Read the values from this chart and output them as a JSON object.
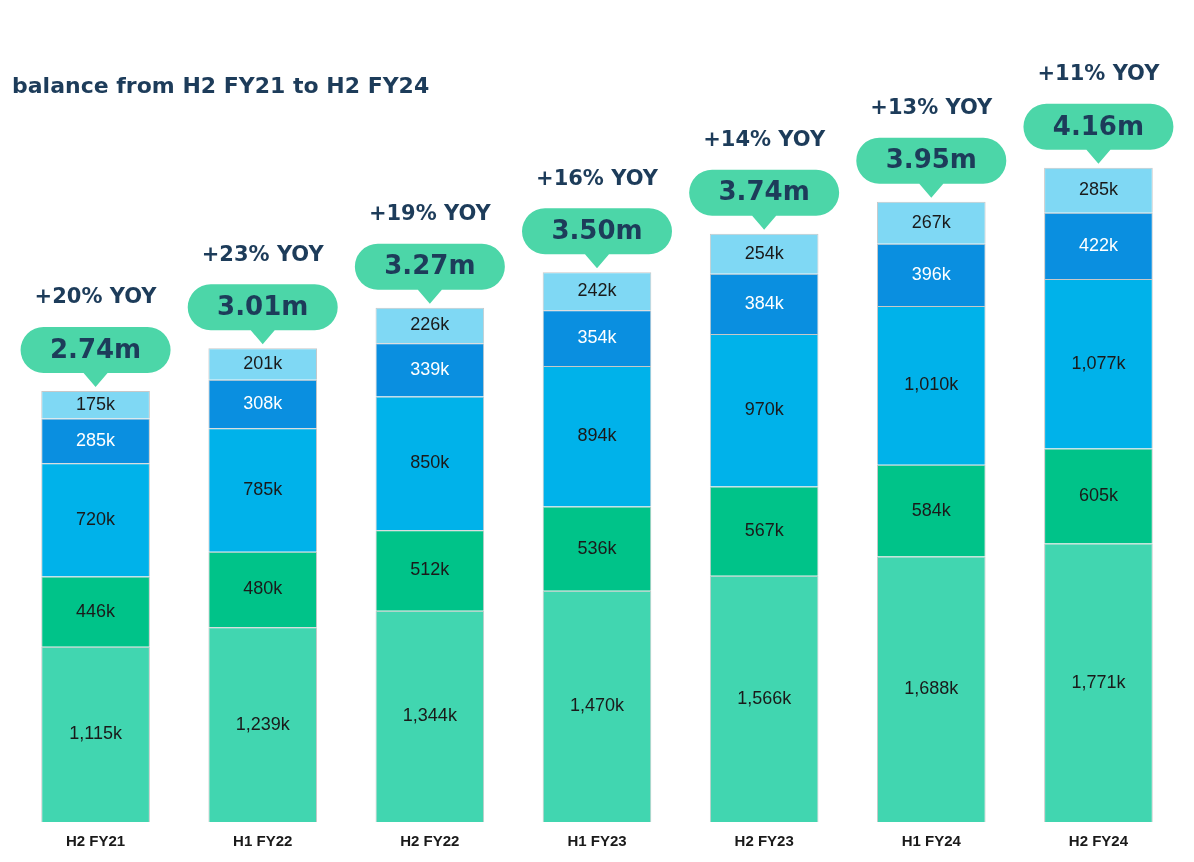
{
  "chart_data": {
    "type": "bar",
    "stacked": true,
    "title": "balance from H2 FY21 to H2 FY24",
    "categories": [
      "H2 FY21",
      "H1 FY22",
      "H2 FY22",
      "H1 FY23",
      "H2 FY23",
      "H1 FY24",
      "H2 FY24"
    ],
    "series": [
      {
        "color": "#41d6b0",
        "values": [
          1115,
          1239,
          1344,
          1470,
          1566,
          1688,
          1771
        ],
        "value_labels": [
          "1,115k",
          "1,239k",
          "1,344k",
          "1,470k",
          "1,566k",
          "1,688k",
          "1,771k"
        ]
      },
      {
        "color": "#00c389",
        "values": [
          446,
          480,
          512,
          536,
          567,
          584,
          605
        ],
        "value_labels": [
          "446k",
          "480k",
          "512k",
          "536k",
          "567k",
          "584k",
          "605k"
        ]
      },
      {
        "color": "#00b2ea",
        "values": [
          720,
          785,
          850,
          894,
          970,
          1010,
          1077
        ],
        "value_labels": [
          "720k",
          "785k",
          "850k",
          "894k",
          "970k",
          "1,010k",
          "1,077k"
        ]
      },
      {
        "color": "#0a8fe0",
        "values": [
          285,
          308,
          339,
          354,
          384,
          396,
          422
        ],
        "value_labels": [
          "285k",
          "308k",
          "339k",
          "354k",
          "384k",
          "396k",
          "422k"
        ]
      },
      {
        "color": "#7fd8f4",
        "values": [
          175,
          201,
          226,
          242,
          254,
          267,
          285
        ],
        "value_labels": [
          "175k",
          "201k",
          "226k",
          "242k",
          "254k",
          "267k",
          "285k"
        ]
      }
    ],
    "totals": [
      "2.74m",
      "3.01m",
      "3.27m",
      "3.50m",
      "3.74m",
      "3.95m",
      "4.16m"
    ],
    "annotations": [
      "+20% YOY",
      "+23% YOY",
      "+19% YOY",
      "+16% YOY",
      "+14% YOY",
      "+13% YOY",
      "+11% YOY"
    ],
    "tick_labels": "x",
    "grid": false,
    "legend": false
  }
}
